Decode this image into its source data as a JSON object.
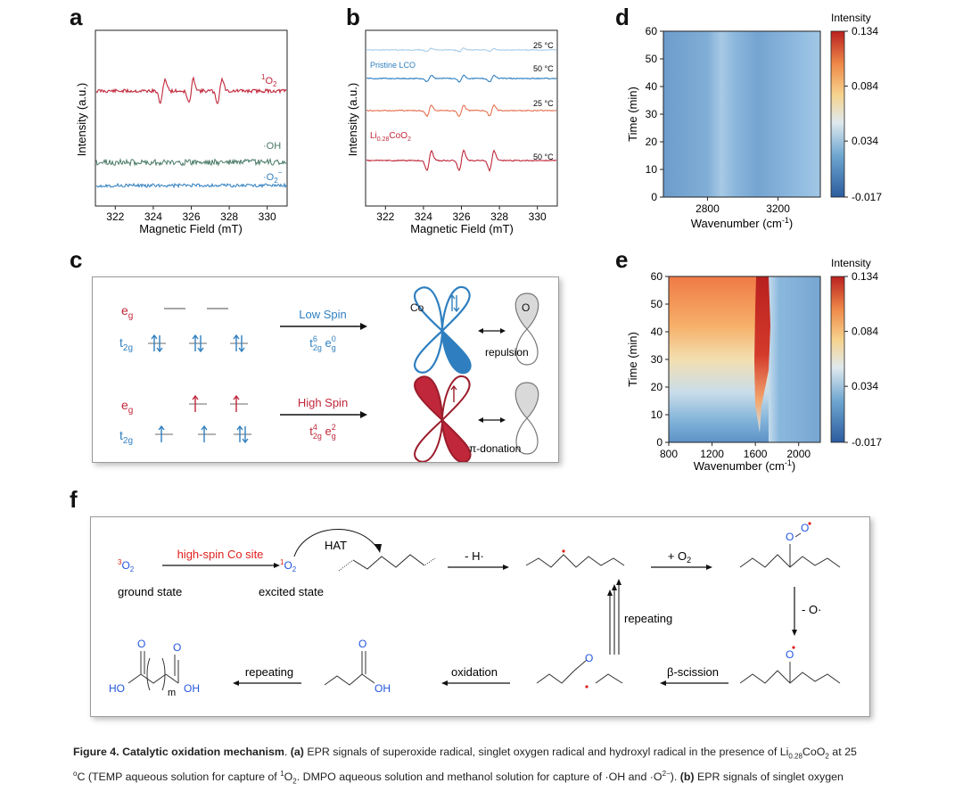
{
  "panels": {
    "a": {
      "label": "a",
      "xlabel": "Magnetic Field (mT)",
      "ylabel": "Intensity (a.u.)",
      "xticks": [
        "322",
        "324",
        "326",
        "328",
        "330"
      ],
      "traces": [
        {
          "label_main": "O",
          "label_pre": "1",
          "label_sub": "2",
          "color": "#c0273a"
        },
        {
          "label_main": "·OH",
          "color": "#4a7a66"
        },
        {
          "label_main": "·O",
          "label_sub": "2",
          "label_sup": "−",
          "color": "#2f7fc0"
        }
      ]
    },
    "b": {
      "label": "b",
      "xlabel": "Magnetic Field (mT)",
      "ylabel": "Intensity (a.u.)",
      "xticks": [
        "322",
        "324",
        "326",
        "328",
        "330"
      ],
      "temps": [
        "25 °C",
        "50 °C",
        "25 °C",
        "50 °C"
      ],
      "sample1": "Pristine LCO",
      "sample2_main": "Li",
      "sample2_sub": "0.28",
      "sample2_tail": "CoO",
      "sample2_sub2": "2",
      "colors": [
        "#a9cde8",
        "#2f7fc0",
        "#e67050",
        "#c0273a"
      ]
    },
    "d": {
      "label": "d",
      "xlabel": "Wavenumber (cm",
      "xlabel_sup": "-1",
      "xlabel_end": ")",
      "ylabel": "Time (min)",
      "xticks": [
        "2800",
        "3200"
      ],
      "yticks": [
        "0",
        "10",
        "20",
        "30",
        "40",
        "50",
        "60"
      ],
      "cbar_title": "Intensity",
      "cbar_ticks": [
        "0.134",
        "0.084",
        "0.034",
        "-0.017"
      ]
    },
    "e": {
      "label": "e",
      "xlabel": "Wavenumber (cm",
      "xlabel_sup": "-1",
      "xlabel_end": ")",
      "ylabel": "Time (min)",
      "xticks": [
        "800",
        "1200",
        "1600",
        "2000"
      ],
      "yticks": [
        "0",
        "10",
        "20",
        "30",
        "40",
        "50",
        "60"
      ],
      "cbar_title": "Intensity",
      "cbar_ticks": [
        "0.134",
        "0.084",
        "0.034",
        "-0.017"
      ]
    },
    "c": {
      "label": "c",
      "eg": "e",
      "eg_sub": "g",
      "t2g": "t",
      "t2g_sub": "2g",
      "low_spin": "Low Spin",
      "high_spin": "High Spin",
      "low_config_a": "t",
      "low_config_a_sup": "6",
      "low_config_a_sub": "2g",
      "low_config_b": " e",
      "low_config_b_sup": "0",
      "low_config_b_sub": "g",
      "high_config_a": "t",
      "high_config_a_sup": "4",
      "high_config_a_sub": "2g",
      "high_config_b": " e",
      "high_config_b_sup": "2",
      "high_config_b_sub": "g",
      "co_label": "Co",
      "o_label": "O",
      "repulsion": "repulsion",
      "pi_donation": "π-donation"
    },
    "f": {
      "label": "f",
      "ground_o2_sup": "3",
      "ground_o2": "O",
      "ground_o2_sub": "2",
      "ground_state": "ground state",
      "high_spin_site": "high-spin Co site",
      "excited_o2_sup": "1",
      "excited_o2": "O",
      "excited_o2_sub": "2",
      "excited_state": "excited state",
      "hat": "HAT",
      "minus_h": "- H·",
      "plus_o2": "+ O",
      "plus_o2_sub": "2",
      "minus_o": "- O·",
      "repeating1": "repeating",
      "beta_scission": "β-scission",
      "oxidation": "oxidation",
      "repeating2": "repeating",
      "ho": "HO",
      "oh": "OH",
      "oh2": "OH",
      "m": "m",
      "o_atom": "O"
    }
  },
  "caption": {
    "title": "Figure 4. Catalytic oxidation mechanism",
    "part_a": ". ",
    "a_tag": "(a)",
    "text1": " EPR signals of superoxide radical, singlet oxygen radical and hydroxyl radical in the presence of Li",
    "text1_sub": "0.28",
    "text1b": "CoO",
    "text1b_sub": "2",
    "text1c": " at 25",
    "text2_sup": "o",
    "text2": "C (TEMP aqueous solution for capture of ",
    "text2_sup2": "1",
    "text2b": "O",
    "text2b_sub": "2",
    "text2c": ". DMPO aqueous solution and methanol solution for capture of ·OH and ·O",
    "text2c_sup": "2−",
    "text2d": "). ",
    "b_tag": "(b)",
    "text3": " EPR signals of singlet oxygen"
  },
  "colors": {
    "red": "#c0273a",
    "blue": "#2f7fc0",
    "green": "#4a7a66",
    "accent_red": "#e0201e",
    "atom_blue": "#2255dd"
  }
}
